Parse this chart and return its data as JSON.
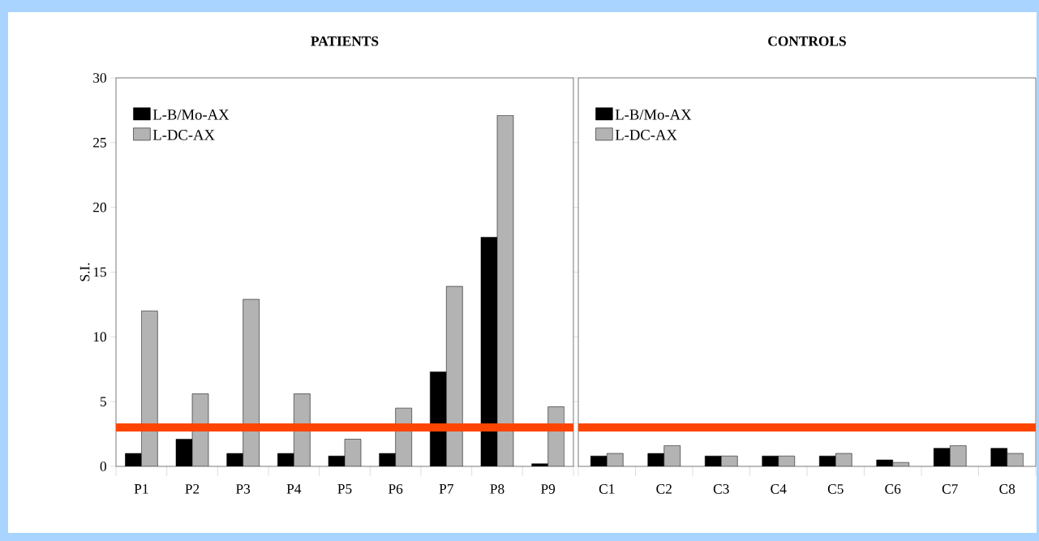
{
  "chart_data": [
    {
      "type": "bar",
      "title": "PATIENTS",
      "ylabel": "S.I.",
      "categories": [
        "P1",
        "P2",
        "P3",
        "P4",
        "P5",
        "P6",
        "P7",
        "P8",
        "P9"
      ],
      "series": [
        {
          "name": "L-B/Mo-AX",
          "color": "#000000",
          "values": [
            1.0,
            2.1,
            1.0,
            1.0,
            0.8,
            1.0,
            7.3,
            17.7,
            0.2
          ]
        },
        {
          "name": "L-DC-AX",
          "color": "#b3b3b3",
          "values": [
            12.0,
            5.6,
            12.9,
            5.6,
            2.1,
            4.5,
            13.9,
            27.1,
            4.6
          ]
        }
      ],
      "ylim": [
        0,
        30
      ],
      "yticks": [
        0,
        5,
        10,
        15,
        20,
        25,
        30
      ],
      "legend": "top left",
      "ref_lines": [
        {
          "axis": "y",
          "value": 3,
          "color": "#ff4500"
        }
      ]
    },
    {
      "type": "bar",
      "title": "CONTROLS",
      "categories": [
        "C1",
        "C2",
        "C3",
        "C4",
        "C5",
        "C6",
        "C7",
        "C8"
      ],
      "series": [
        {
          "name": "L-B/Mo-AX",
          "color": "#000000",
          "values": [
            0.8,
            1.0,
            0.8,
            0.8,
            0.8,
            0.5,
            1.4,
            1.4
          ]
        },
        {
          "name": "L-DC-AX",
          "color": "#b3b3b3",
          "values": [
            1.0,
            1.6,
            0.8,
            0.8,
            1.0,
            0.3,
            1.6,
            1.0
          ]
        }
      ],
      "ylim": [
        0,
        30
      ],
      "yticks": [
        0,
        5,
        10,
        15,
        20,
        25,
        30
      ],
      "tick_labels": "x",
      "legend": "top left",
      "ref_lines": [
        {
          "axis": "y",
          "value": 3,
          "color": "#ff4500"
        }
      ]
    }
  ]
}
